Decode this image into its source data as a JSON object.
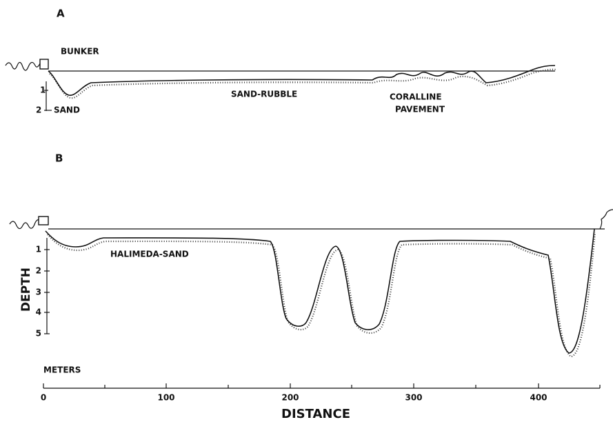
{
  "panel_a": {
    "label": "A",
    "labels": [
      "BUNKER",
      "SAND-RUBBLE",
      "CORALLINE",
      "PAVEMENT",
      "SAND"
    ],
    "depth_ticks": [
      "1",
      "2"
    ]
  },
  "panel_b": {
    "label": "B",
    "labels": [
      "HALIMEDA-SAND"
    ],
    "depth_axis_title": "DEPTH",
    "depth_ticks": [
      "1",
      "2",
      "3",
      "4",
      "5"
    ]
  },
  "distance_axis": {
    "unit": "METERS",
    "title": "DISTANCE",
    "ticks": [
      "0",
      "100",
      "200",
      "300",
      "400"
    ]
  }
}
